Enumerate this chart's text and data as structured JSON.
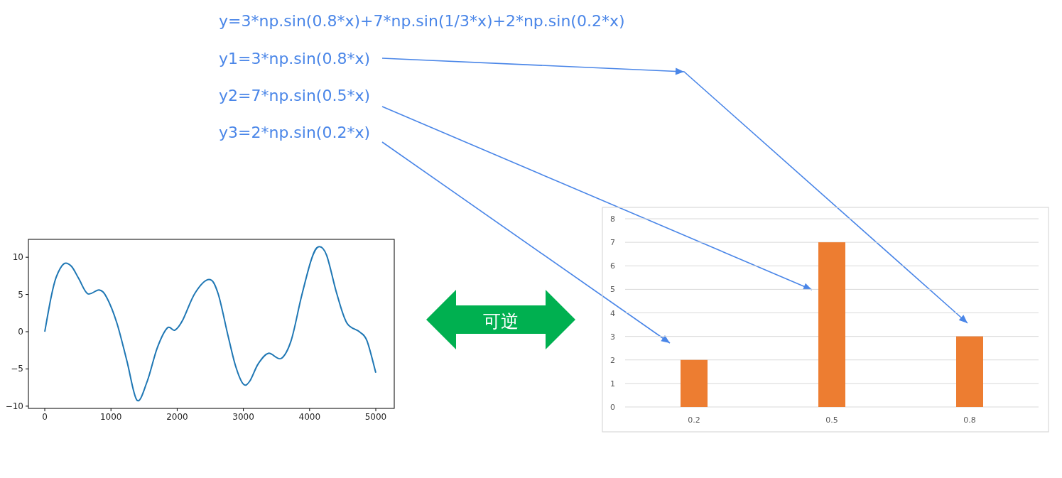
{
  "chart_data": [
    {
      "type": "other",
      "annotations": [
        "y=3*np.sin(0.8*x)+7*np.sin(1/3*x)+2*np.sin(0.2*x)",
        "y1=3*np.sin(0.8*x)",
        "y2=7*np.sin(0.5*x)",
        "y3=2*np.sin(0.2*x)",
        "可逆"
      ]
    },
    {
      "type": "line",
      "x": [
        0,
        95,
        172,
        286,
        401,
        515,
        649,
        821,
        935,
        1088,
        1240,
        1393,
        1546,
        1698,
        1851,
        1966,
        2080,
        2271,
        2481,
        2615,
        2767,
        2882,
        2996,
        3092,
        3225,
        3378,
        3569,
        3721,
        3874,
        4027,
        4134,
        4256,
        4408,
        4561,
        4752,
        4866,
        5000
      ],
      "series": [
        {
          "color": "#1f77b4",
          "values": [
            0,
            4.6,
            7.3,
            9.1,
            8.8,
            7.1,
            5.1,
            5.6,
            4.6,
            1.2,
            -3.9,
            -9.2,
            -6.7,
            -2.2,
            0.5,
            0.2,
            1.5,
            5.2,
            7.0,
            5.2,
            -0.5,
            -4.6,
            -7.0,
            -6.7,
            -4.3,
            -2.9,
            -3.6,
            -1.2,
            4.6,
            9.7,
            11.4,
            10.3,
            5.2,
            1.2,
            0,
            -1.2,
            -5.5
          ]
        }
      ],
      "xlim": [
        -247,
        5279
      ],
      "ylim": [
        -10.3,
        12.4
      ],
      "xticks": [
        0,
        1000,
        2000,
        3000,
        4000,
        5000
      ],
      "yticks": [
        -10,
        -5,
        0,
        5,
        10
      ]
    },
    {
      "type": "bar",
      "categories": [
        "0.2",
        "0.5",
        "0.8"
      ],
      "values": [
        2,
        7,
        3
      ],
      "color": "#ed7d31",
      "ylim": [
        0,
        8
      ],
      "yticks": [
        0,
        1,
        2,
        3,
        4,
        5,
        6,
        7,
        8
      ],
      "grid": "y"
    }
  ]
}
